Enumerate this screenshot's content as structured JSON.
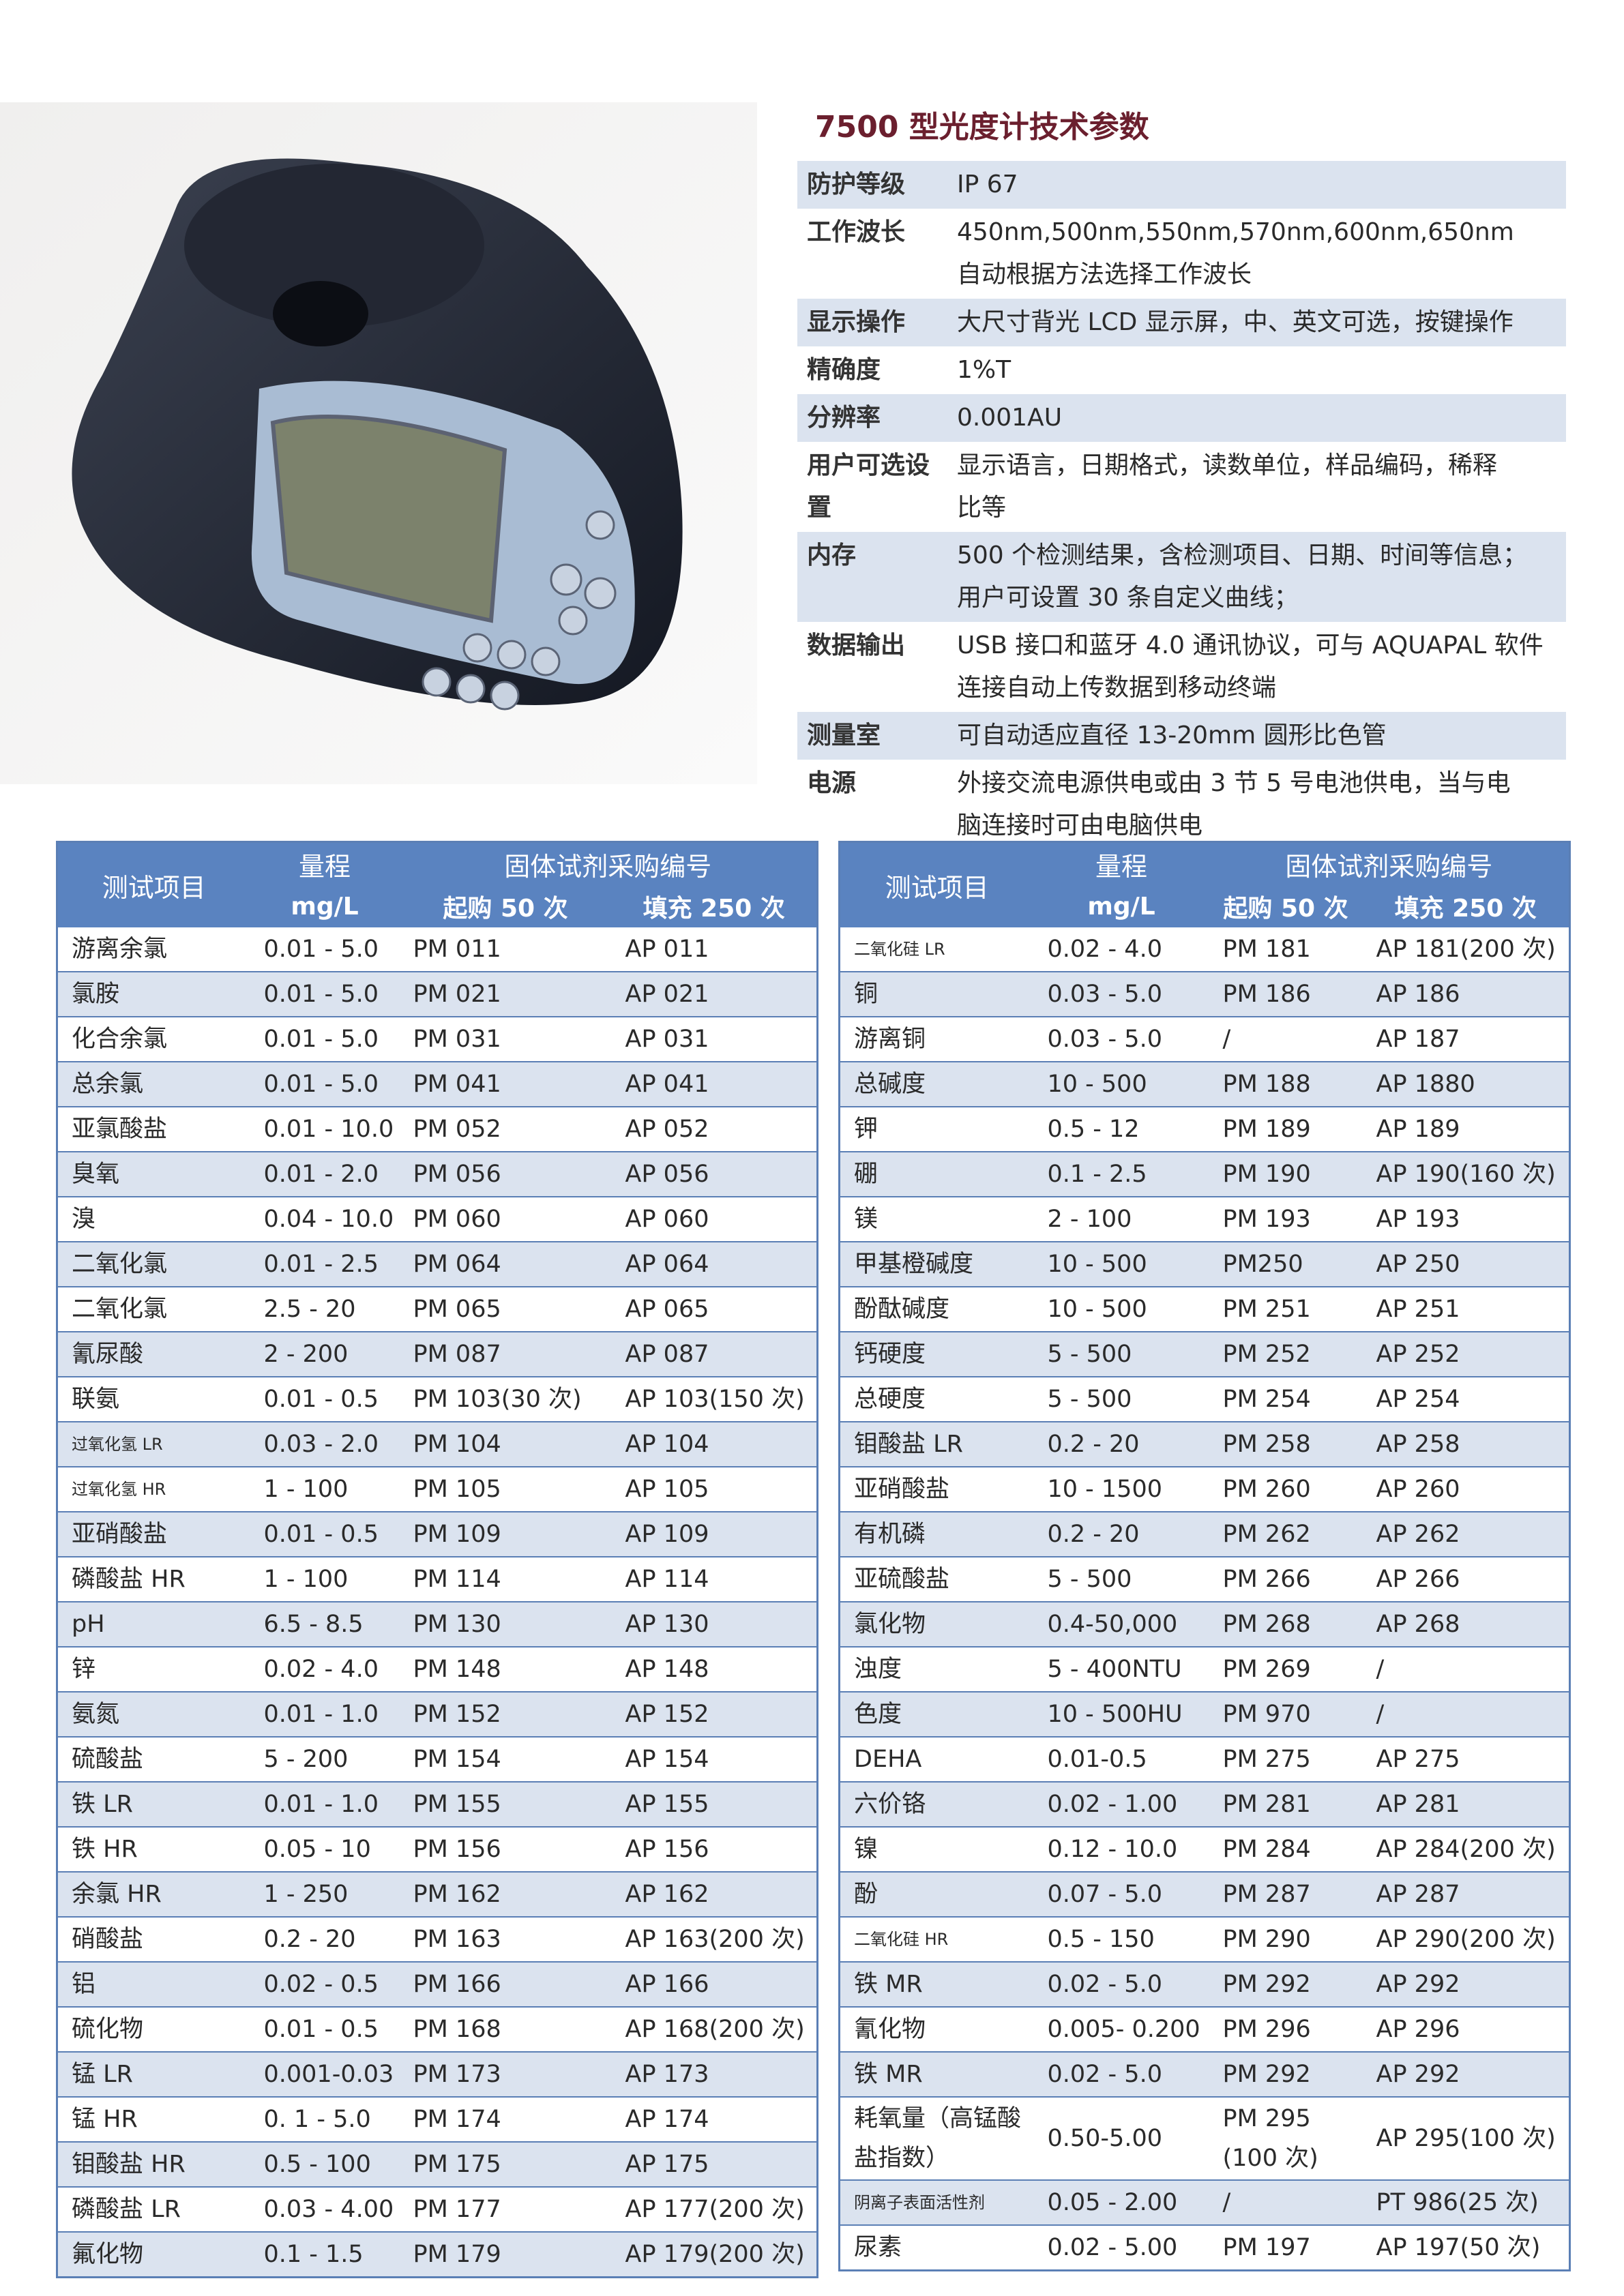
{
  "header": {
    "title": "7500 型光度计技术参数"
  },
  "specs": [
    {
      "label": "防护等级",
      "lines": [
        "IP 67"
      ]
    },
    {
      "label": "工作波长",
      "lines": [
        "450nm,500nm,550nm,570nm,600nm,650nm",
        "自动根据方法选择工作波长"
      ]
    },
    {
      "label": "显示操作",
      "lines": [
        "大尺寸背光 LCD 显示屏，中、英文可选，按键操作"
      ]
    },
    {
      "label": "精确度",
      "lines": [
        "1%T"
      ]
    },
    {
      "label": "分辨率",
      "lines": [
        "0.001AU"
      ]
    },
    {
      "label": "用户可选设置",
      "lines": [
        "显示语言，日期格式，读数单位，样品编码，稀释",
        "比等"
      ]
    },
    {
      "label": "内存",
      "lines": [
        "500 个检测结果，含检测项目、日期、时间等信息；",
        "用户可设置 30 条自定义曲线；"
      ]
    },
    {
      "label": "数据输出",
      "lines": [
        "USB 接口和蓝牙 4.0 通讯协议，可与 AQUAPAL 软件",
        "连接自动上传数据到移动终端"
      ]
    },
    {
      "label": "测量室",
      "lines": [
        "可自动适应直径 13-20mm 圆形比色管"
      ]
    },
    {
      "label": "电源",
      "lines": [
        "外接交流电源供电或由 3 节 5 号电池供电，当与电",
        "脑连接时可由电脑供电"
      ]
    }
  ],
  "tables": [
    {
      "headers": {
        "item": "测试项目",
        "range": "量程",
        "unit": "mg/L",
        "code": "固体试剂采购编号",
        "start": "起购 50 次",
        "refill": "填充 250 次"
      },
      "rows": [
        [
          "游离余氯",
          "0.01 - 5.0",
          "PM 011",
          "AP 011"
        ],
        [
          "氯胺",
          "0.01 - 5.0",
          "PM 021",
          "AP 021"
        ],
        [
          "化合余氯",
          "0.01 - 5.0",
          "PM 031",
          "AP 031"
        ],
        [
          "总余氯",
          "0.01 - 5.0",
          "PM 041",
          "AP 041"
        ],
        [
          "亚氯酸盐",
          "0.01 - 10.0",
          "PM 052",
          "AP 052"
        ],
        [
          "臭氧",
          "0.01 - 2.0",
          "PM 056",
          "AP 056"
        ],
        [
          "溴",
          "0.04 - 10.0",
          "PM 060",
          "AP 060"
        ],
        [
          "二氧化氯",
          "0.01 - 2.5",
          "PM 064",
          "AP 064"
        ],
        [
          "二氧化氯",
          "2.5 - 20",
          "PM 065",
          "AP 065"
        ],
        [
          "氰尿酸",
          "2 - 200",
          "PM 087",
          "AP 087"
        ],
        [
          "联氨",
          "0.01 - 0.5",
          "PM 103(30 次)",
          "AP 103(150 次)"
        ],
        [
          "过氧化氢 LR",
          "0.03 - 2.0",
          "PM 104",
          "AP 104"
        ],
        [
          "过氧化氢 HR",
          "1 - 100",
          "PM 105",
          "AP 105"
        ],
        [
          "亚硝酸盐",
          "0.01 - 0.5",
          "PM 109",
          "AP 109"
        ],
        [
          "磷酸盐 HR",
          "1 - 100",
          "PM 114",
          "AP 114"
        ],
        [
          "pH",
          "6.5 - 8.5",
          "PM 130",
          "AP 130"
        ],
        [
          "锌",
          "0.02 - 4.0",
          "PM 148",
          "AP 148"
        ],
        [
          "氨氮",
          "0.01 - 1.0",
          "PM 152",
          "AP 152"
        ],
        [
          "硫酸盐",
          "5 - 200",
          "PM 154",
          "AP 154"
        ],
        [
          "铁 LR",
          "0.01 - 1.0",
          "PM 155",
          "AP 155"
        ],
        [
          "铁 HR",
          "0.05 - 10",
          "PM 156",
          "AP 156"
        ],
        [
          "余氯 HR",
          "1 - 250",
          "PM 162",
          "AP 162"
        ],
        [
          "硝酸盐",
          "0.2 - 20",
          "PM 163",
          "AP 163(200 次)"
        ],
        [
          "铝",
          "0.02 - 0.5",
          "PM 166",
          "AP 166"
        ],
        [
          "硫化物",
          "0.01 - 0.5",
          "PM 168",
          "AP 168(200 次)"
        ],
        [
          "锰 LR",
          "0.001-0.03",
          "PM 173",
          "AP 173"
        ],
        [
          "锰 HR",
          "0. 1 - 5.0",
          "PM 174",
          "AP 174"
        ],
        [
          "钼酸盐 HR",
          "0.5 - 100",
          "PM 175",
          "AP 175"
        ],
        [
          "磷酸盐 LR",
          "0.03 - 4.00",
          "PM 177",
          "AP 177(200 次)"
        ],
        [
          "氟化物",
          "0.1 - 1.5",
          "PM 179",
          "AP 179(200 次)"
        ]
      ]
    },
    {
      "headers": {
        "item": "测试项目",
        "range": "量程",
        "unit": "mg/L",
        "code": "固体试剂采购编号",
        "start": "起购 50 次",
        "refill": "填充 250 次"
      },
      "rows": [
        [
          "二氧化硅 LR",
          "0.02 - 4.0",
          "PM 181",
          "AP 181(200 次)"
        ],
        [
          "铜",
          "0.03 - 5.0",
          "PM 186",
          "AP 186"
        ],
        [
          "游离铜",
          "0.03 - 5.0",
          "/",
          "AP 187"
        ],
        [
          "总碱度",
          "10 - 500",
          "PM 188",
          "AP 1880"
        ],
        [
          "钾",
          "0.5 - 12",
          "PM 189",
          "AP 189"
        ],
        [
          "硼",
          "0.1 - 2.5",
          "PM 190",
          "AP 190(160 次)"
        ],
        [
          "镁",
          "2 - 100",
          "PM 193",
          "AP 193"
        ],
        [
          "甲基橙碱度",
          "10 - 500",
          "PM250",
          "AP 250"
        ],
        [
          "酚酞碱度",
          "10 - 500",
          "PM 251",
          "AP 251"
        ],
        [
          "钙硬度",
          "5 - 500",
          "PM 252",
          "AP 252"
        ],
        [
          "总硬度",
          "5 - 500",
          "PM 254",
          "AP 254"
        ],
        [
          "钼酸盐 LR",
          "0.2 - 20",
          "PM 258",
          "AP 258"
        ],
        [
          "亚硝酸盐",
          "10 - 1500",
          "PM 260",
          "AP 260"
        ],
        [
          "有机磷",
          "0.2 - 20",
          "PM 262",
          "AP 262"
        ],
        [
          "亚硫酸盐",
          "5 - 500",
          "PM 266",
          "AP 266"
        ],
        [
          "氯化物",
          "0.4-50,000",
          "PM 268",
          "AP 268"
        ],
        [
          "浊度",
          "5 - 400NTU",
          "PM 269",
          "/"
        ],
        [
          "色度",
          "10 - 500HU",
          "PM 970",
          "/"
        ],
        [
          "DEHA",
          "0.01-0.5",
          "PM 275",
          "AP 275"
        ],
        [
          "六价铬",
          "0.02 - 1.00",
          "PM 281",
          "AP 281"
        ],
        [
          "镍",
          "0.12 - 10.0",
          "PM 284",
          "AP 284(200 次)"
        ],
        [
          "酚",
          "0.07 - 5.0",
          "PM 287",
          "AP 287"
        ],
        [
          "二氧化硅 HR",
          "0.5 - 150",
          "PM 290",
          "AP 290(200 次)"
        ],
        [
          "铁 MR",
          "0.02 - 5.0",
          "PM 292",
          "AP 292"
        ],
        [
          "氰化物",
          "0.005- 0.200",
          "PM 296",
          "AP 296"
        ],
        [
          "铁 MR",
          "0.02 - 5.0",
          "PM 292",
          "AP 292"
        ],
        [
          "耗氧量（高锰酸盐指数）",
          "0.50-5.00",
          "PM 295 (100 次)",
          "AP 295(100 次)"
        ],
        [
          "阴离子表面活性剂",
          "0.05 - 2.00",
          "/",
          "PT 986(25 次)"
        ],
        [
          "尿素",
          "0.02 - 5.00",
          "PM 197",
          "AP 197(50 次)"
        ]
      ]
    }
  ]
}
